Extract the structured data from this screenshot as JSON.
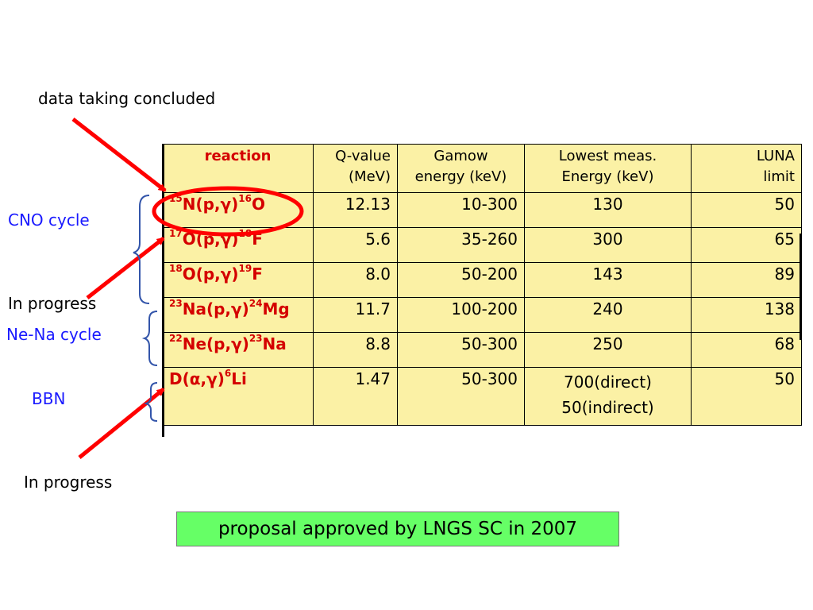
{
  "annotations": {
    "data_taking": "data taking concluded",
    "cno": "CNO cycle",
    "in_progress_1": "In progress",
    "nena": "Ne-Na cycle",
    "bbn": "BBN",
    "in_progress_2": "In progress"
  },
  "table": {
    "headers": {
      "reaction": "reaction",
      "q_value": [
        "Q-value",
        "(MeV)"
      ],
      "gamow": [
        "Gamow",
        "energy (keV)"
      ],
      "lowest": [
        "Lowest meas.",
        "Energy (keV)"
      ],
      "luna": [
        "LUNA",
        "limit"
      ]
    },
    "rows": [
      {
        "reaction": {
          "m1": "15",
          "t1": "N(p,",
          "g": "γ",
          ")": ")",
          "m2": "16",
          "t2": "O"
        },
        "q": "12.13",
        "gamow": "10-300",
        "lowest": "130",
        "luna": "50"
      },
      {
        "reaction": {
          "m1": "17",
          "t1": "O(p,",
          "g": "γ",
          ")": ")",
          "m2": "18",
          "t2": "F"
        },
        "q": "5.6",
        "gamow": "35-260",
        "lowest": "300",
        "luna": "65"
      },
      {
        "reaction": {
          "m1": "18",
          "t1": "O(p,",
          "g": "γ",
          ")": ")",
          "m2": "19",
          "t2": "F"
        },
        "q": "8.0",
        "gamow": "50-200",
        "lowest": "143",
        "luna": "89"
      },
      {
        "reaction": {
          "m1": "23",
          "t1": "Na(p,",
          "g": "γ",
          ")": ")",
          "m2": "24",
          "t2": "Mg"
        },
        "q": "11.7",
        "gamow": "100-200",
        "lowest": "240",
        "luna": "138"
      },
      {
        "reaction": {
          "m1": "22",
          "t1": "Ne(p,",
          "g": "γ",
          ")": ")",
          "m2": "23",
          "t2": "Na"
        },
        "q": "8.8",
        "gamow": "50-300",
        "lowest": "250",
        "luna": "68"
      },
      {
        "reaction": {
          "m1": "",
          "t1": "D(α,",
          "g": "γ",
          ")": ")",
          "m2": "6",
          "t2": "Li"
        },
        "q": "1.47",
        "gamow": "50-300",
        "lowest": "700(direct)",
        "lowest2": "50(indirect)",
        "luna": "50"
      }
    ]
  },
  "proposal": "proposal approved by LNGS SC in 2007",
  "colors": {
    "table_bg": "#fbf1a5",
    "reaction_text": "#d40000",
    "arrow": "#ff0000",
    "label_blue": "#1a1aff",
    "proposal_bg": "#66ff66"
  }
}
